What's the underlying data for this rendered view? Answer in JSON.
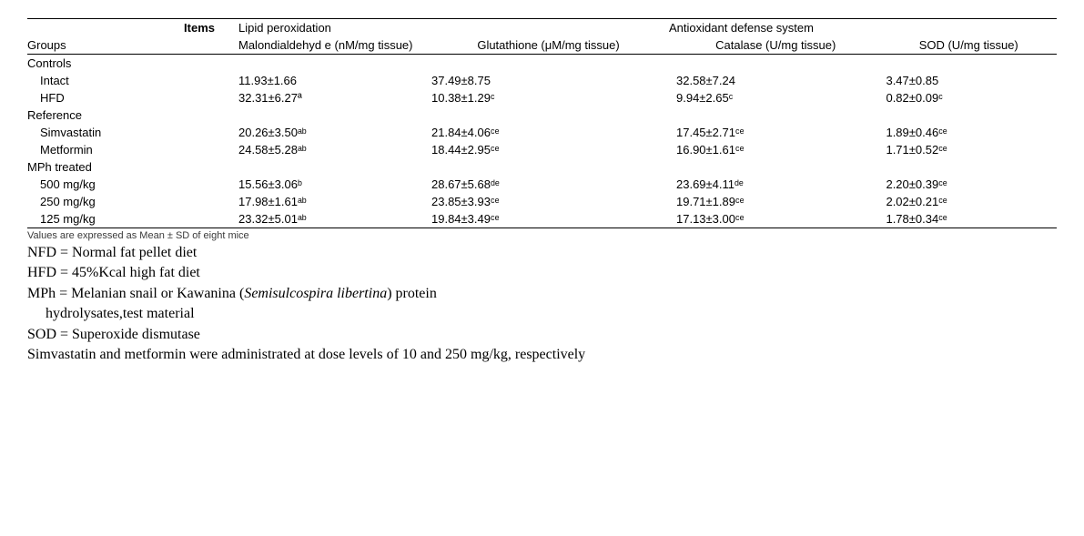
{
  "table": {
    "header": {
      "items_label": "Items",
      "lipid_label": "Lipid peroxidation",
      "antiox_label": "Antioxidant defense system",
      "groups_label": "Groups",
      "sub1": "Malondialdehyd e (nM/mg tissue)",
      "sub2": "Glutathione (μM/mg tissue)",
      "sub3": "Catalase (U/mg tissue)",
      "sub4": "SOD (U/mg tissue)"
    },
    "sections": {
      "controls_label": "Controls",
      "intact_label": "Intact",
      "intact": {
        "c1": "11.93±1.66",
        "c2": "37.49±8.75",
        "c3": "32.58±7.24",
        "c4": "3.47±0.85"
      },
      "hfd_label": "HFD",
      "hfd": {
        "c1": "32.31±6.27ª",
        "c2": "10.38±1.29ᶜ",
        "c3": "9.94±2.65ᶜ",
        "c4": "0.82±0.09ᶜ"
      },
      "reference_label": "Reference",
      "simvastatin_label": "Simvastatin",
      "simvastatin": {
        "c1": "20.26±3.50ᵃᵇ",
        "c2": "21.84±4.06ᶜᵉ",
        "c3": "17.45±2.71ᶜᵉ",
        "c4": "1.89±0.46ᶜᵉ"
      },
      "metformin_label": "Metformin",
      "metformin": {
        "c1": "24.58±5.28ᵃᵇ",
        "c2": "18.44±2.95ᶜᵉ",
        "c3": "16.90±1.61ᶜᵉ",
        "c4": "1.71±0.52ᶜᵉ"
      },
      "mph_label": "MPh treated",
      "mph500_label": "500 mg/kg",
      "mph500": {
        "c1": "15.56±3.06ᵇ",
        "c2": "28.67±5.68ᵈᵉ",
        "c3": "23.69±4.11ᵈᵉ",
        "c4": "2.20±0.39ᶜᵉ"
      },
      "mph250_label": "250 mg/kg",
      "mph250": {
        "c1": "17.98±1.61ᵃᵇ",
        "c2": "23.85±3.93ᶜᵉ",
        "c3": "19.71±1.89ᶜᵉ",
        "c4": "2.02±0.21ᶜᵉ"
      },
      "mph125_label": "125 mg/kg",
      "mph125": {
        "c1": "23.32±5.01ᵃᵇ",
        "c2": "19.84±3.49ᶜᵉ",
        "c3": "17.13±3.00ᶜᵉ",
        "c4": "1.78±0.34ᶜᵉ"
      }
    }
  },
  "footnotes": {
    "small": "Values are expressed as Mean ± SD of eight mice",
    "nfd": "NFD = Normal fat pellet diet",
    "hfd": "HFD = 45%Kcal high fat diet",
    "mph_pre": "MPh  =  Melanian  snail  or  Kawanina  (",
    "mph_italic": "Semisulcospira  libertina",
    "mph_post": ")  protein",
    "mph_line2": "hydrolysates,test material",
    "sod": "SOD = Superoxide dismutase",
    "dose": "Simvastatin and metformin were administrated at dose levels of 10 and 250 mg/kg, respectively"
  }
}
